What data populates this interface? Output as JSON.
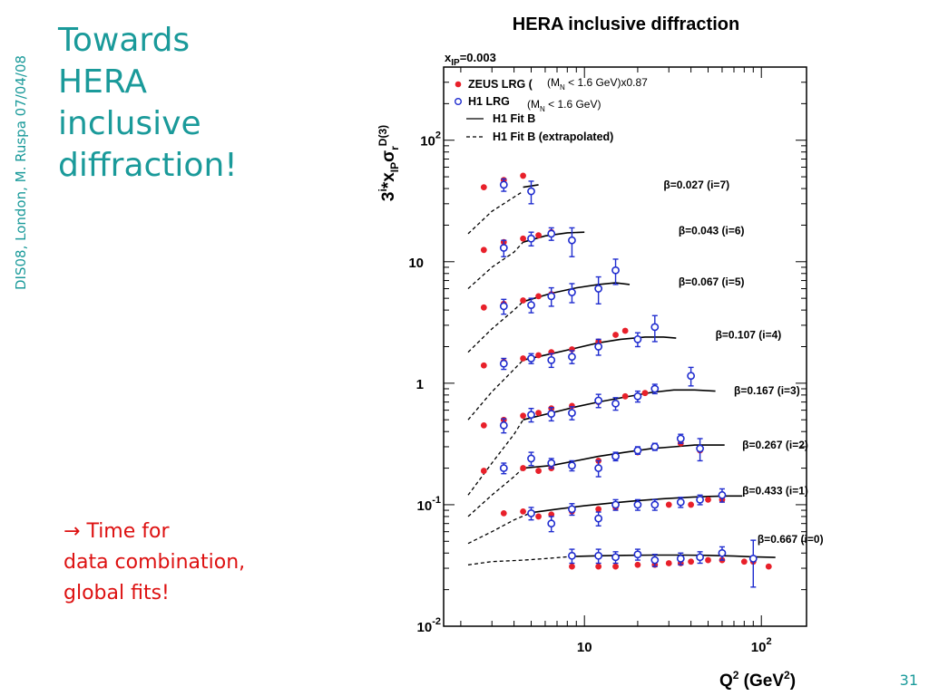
{
  "slide": {
    "side_label": "DIS08, London, M. Ruspa 07/04/08",
    "title_lines": [
      "Towards",
      "HERA",
      "inclusive",
      "diffraction!"
    ],
    "note_arrow": "→",
    "note_lines": [
      "Time for",
      "data combination,",
      "global fits!"
    ],
    "page_number": "31"
  },
  "colors": {
    "title": "#1a9a9a",
    "note": "#dd1111",
    "zeus": "#e8202a",
    "h1": "#1f2ccf",
    "fit": "#000000"
  },
  "chart_data": {
    "type": "scatter",
    "title": "HERA inclusive diffraction",
    "kinematics_label": "x",
    "kinematics_sub": "IP",
    "kinematics_value": "=0.003",
    "ylabel": {
      "prefix": "3",
      "sup_i": "i",
      "mid": "*x",
      "sub_ip": "IP",
      "sigma": "σ",
      "sub_r": "r",
      "sup_d3": "D(3)"
    },
    "xlabel": {
      "q": "Q",
      "sup": "2",
      "unit_open": " (GeV",
      "unit_sup": "2",
      "unit_close": ")"
    },
    "x_scale": "log",
    "y_scale": "log",
    "xlim": [
      1.6,
      180
    ],
    "ylim": [
      0.01,
      400
    ],
    "x_ticks": [
      {
        "value": 10,
        "base": "10",
        "exp": ""
      },
      {
        "value": 100,
        "base": "10",
        "exp": "2"
      }
    ],
    "y_ticks": [
      {
        "value": 0.01,
        "base": "10",
        "exp": "-2"
      },
      {
        "value": 0.1,
        "base": "10",
        "exp": "-1"
      },
      {
        "value": 1,
        "base": "1",
        "exp": ""
      },
      {
        "value": 10,
        "base": "10",
        "exp": ""
      },
      {
        "value": 100,
        "base": "10",
        "exp": "2"
      }
    ],
    "legend": {
      "position": "top-left",
      "entries": [
        {
          "marker": "zeus",
          "label": "ZEUS LRG (",
          "extra": "(M",
          "extra_sub": "N",
          "extra_rest": " < 1.6 GeV)x0.87"
        },
        {
          "marker": "h1",
          "label": "H1 LRG",
          "extra": "(M",
          "extra_sub": "N",
          "extra_rest": " < 1.6 GeV)"
        },
        {
          "marker": "fit",
          "label": "H1 Fit B"
        },
        {
          "marker": "fit-dashed",
          "label": "H1 Fit B (extrapolated)"
        }
      ]
    },
    "series": [
      {
        "label": "β=0.027 (i=7)",
        "label_q2": 28,
        "label_y": 43,
        "zeus": [
          [
            2.7,
            41
          ],
          [
            3.5,
            47
          ],
          [
            4.5,
            51
          ]
        ],
        "h1": [
          [
            3.5,
            43,
            5
          ],
          [
            5,
            38,
            8
          ]
        ],
        "fit": [
          [
            4.5,
            41
          ],
          [
            5.5,
            43
          ]
        ],
        "extrap": [
          [
            2.2,
            17
          ],
          [
            3,
            26
          ],
          [
            4,
            34
          ],
          [
            4.5,
            38
          ]
        ]
      },
      {
        "label": "β=0.043 (i=6)",
        "label_q2": 34,
        "label_y": 18,
        "zeus": [
          [
            2.7,
            12.5
          ],
          [
            3.5,
            14.5
          ],
          [
            4.5,
            15.5
          ],
          [
            5.5,
            16.5
          ],
          [
            6.5,
            17.5
          ]
        ],
        "h1": [
          [
            3.5,
            13,
            2
          ],
          [
            5,
            15.5,
            2
          ],
          [
            6.5,
            17,
            2
          ],
          [
            8.5,
            15,
            4
          ]
        ],
        "fit": [
          [
            4.5,
            14.5
          ],
          [
            6,
            16.3
          ],
          [
            8,
            17.3
          ],
          [
            10,
            17.5
          ]
        ],
        "extrap": [
          [
            2.2,
            6
          ],
          [
            3,
            9
          ],
          [
            4,
            12
          ],
          [
            4.5,
            14.5
          ]
        ]
      },
      {
        "label": "β=0.067 (i=5)",
        "label_q2": 34,
        "label_y": 6.8,
        "zeus": [
          [
            2.7,
            4.2
          ],
          [
            3.5,
            4.5
          ],
          [
            4.5,
            4.8
          ],
          [
            5.5,
            5.2
          ],
          [
            6.5,
            5.4
          ],
          [
            8.5,
            5.6
          ],
          [
            12,
            6.0
          ]
        ],
        "h1": [
          [
            3.5,
            4.3,
            0.6
          ],
          [
            5,
            4.4,
            0.6
          ],
          [
            6.5,
            5.2,
            0.9
          ],
          [
            8.5,
            5.6,
            1.0
          ],
          [
            12,
            6.0,
            1.5
          ],
          [
            15,
            8.5,
            2.0
          ]
        ],
        "fit": [
          [
            4.5,
            4.7
          ],
          [
            6.5,
            5.5
          ],
          [
            9,
            6.1
          ],
          [
            12,
            6.5
          ],
          [
            15,
            6.7
          ],
          [
            18,
            6.5
          ]
        ],
        "extrap": [
          [
            2.2,
            1.8
          ],
          [
            3,
            2.8
          ],
          [
            4,
            4
          ],
          [
            4.5,
            4.7
          ]
        ]
      },
      {
        "label": "β=0.107 (i=4)",
        "label_q2": 55,
        "label_y": 2.5,
        "zeus": [
          [
            2.7,
            1.4
          ],
          [
            3.5,
            1.5
          ],
          [
            4.5,
            1.6
          ],
          [
            5.5,
            1.7
          ],
          [
            6.5,
            1.8
          ],
          [
            8.5,
            1.9
          ],
          [
            12,
            2.2
          ],
          [
            15,
            2.5
          ],
          [
            17,
            2.7
          ]
        ],
        "h1": [
          [
            3.5,
            1.45,
            0.15
          ],
          [
            5,
            1.6,
            0.15
          ],
          [
            6.5,
            1.55,
            0.2
          ],
          [
            8.5,
            1.65,
            0.2
          ],
          [
            12,
            2.0,
            0.3
          ],
          [
            20,
            2.3,
            0.3
          ],
          [
            25,
            2.9,
            0.7
          ]
        ],
        "fit": [
          [
            4.5,
            1.55
          ],
          [
            6.5,
            1.75
          ],
          [
            9,
            1.95
          ],
          [
            12,
            2.15
          ],
          [
            16,
            2.3
          ],
          [
            22,
            2.4
          ],
          [
            28,
            2.4
          ],
          [
            33,
            2.35
          ]
        ],
        "extrap": [
          [
            2.2,
            0.5
          ],
          [
            3,
            0.85
          ],
          [
            4,
            1.3
          ],
          [
            4.5,
            1.55
          ]
        ]
      },
      {
        "label": "β=0.167 (i=3)",
        "label_q2": 70,
        "label_y": 0.87,
        "zeus": [
          [
            2.7,
            0.45
          ],
          [
            3.5,
            0.5
          ],
          [
            4.5,
            0.54
          ],
          [
            5.5,
            0.57
          ],
          [
            6.5,
            0.62
          ],
          [
            8.5,
            0.65
          ],
          [
            12,
            0.7
          ],
          [
            17,
            0.78
          ],
          [
            22,
            0.83
          ]
        ],
        "h1": [
          [
            3.5,
            0.45,
            0.06
          ],
          [
            5,
            0.55,
            0.07
          ],
          [
            6.5,
            0.56,
            0.07
          ],
          [
            8.5,
            0.57,
            0.07
          ],
          [
            12,
            0.72,
            0.09
          ],
          [
            15,
            0.68,
            0.08
          ],
          [
            20,
            0.78,
            0.08
          ],
          [
            25,
            0.9,
            0.08
          ],
          [
            40,
            1.15,
            0.2
          ]
        ],
        "fit": [
          [
            4.5,
            0.5
          ],
          [
            6.5,
            0.57
          ],
          [
            9,
            0.64
          ],
          [
            12,
            0.7
          ],
          [
            17,
            0.77
          ],
          [
            24,
            0.84
          ],
          [
            32,
            0.88
          ],
          [
            42,
            0.88
          ],
          [
            55,
            0.86
          ]
        ],
        "extrap": [
          [
            2.2,
            0.12
          ],
          [
            3,
            0.22
          ],
          [
            4,
            0.38
          ],
          [
            4.5,
            0.5
          ]
        ]
      },
      {
        "label": "β=0.267 (i=2)",
        "label_q2": 78,
        "label_y": 0.31,
        "zeus": [
          [
            2.7,
            0.19
          ],
          [
            3.5,
            0.2
          ],
          [
            4.5,
            0.2
          ],
          [
            5.5,
            0.19
          ],
          [
            6.5,
            0.2
          ],
          [
            8.5,
            0.21
          ],
          [
            12,
            0.23
          ],
          [
            15,
            0.25
          ],
          [
            20,
            0.27
          ],
          [
            25,
            0.3
          ],
          [
            35,
            0.32
          ],
          [
            45,
            0.28
          ]
        ],
        "h1": [
          [
            3.5,
            0.2,
            0.02
          ],
          [
            5,
            0.24,
            0.03
          ],
          [
            6.5,
            0.22,
            0.02
          ],
          [
            8.5,
            0.21,
            0.02
          ],
          [
            12,
            0.2,
            0.03
          ],
          [
            15,
            0.25,
            0.02
          ],
          [
            20,
            0.28,
            0.02
          ],
          [
            25,
            0.3,
            0.02
          ],
          [
            35,
            0.35,
            0.03
          ],
          [
            45,
            0.29,
            0.06
          ]
        ],
        "fit": [
          [
            4.5,
            0.2
          ],
          [
            6.5,
            0.21
          ],
          [
            9,
            0.23
          ],
          [
            12,
            0.25
          ],
          [
            17,
            0.27
          ],
          [
            24,
            0.29
          ],
          [
            32,
            0.3
          ],
          [
            42,
            0.31
          ],
          [
            55,
            0.31
          ],
          [
            62,
            0.31
          ]
        ],
        "extrap": [
          [
            2.2,
            0.08
          ],
          [
            3,
            0.12
          ],
          [
            4,
            0.17
          ],
          [
            4.5,
            0.2
          ]
        ]
      },
      {
        "label": "β=0.433 (i=1)",
        "label_q2": 78,
        "label_y": 0.13,
        "zeus": [
          [
            3.5,
            0.085
          ],
          [
            4.5,
            0.088
          ],
          [
            5.5,
            0.08
          ],
          [
            6.5,
            0.083
          ],
          [
            8.5,
            0.088
          ],
          [
            12,
            0.092
          ],
          [
            15,
            0.095
          ],
          [
            20,
            0.1
          ],
          [
            25,
            0.1
          ],
          [
            30,
            0.1
          ],
          [
            40,
            0.1
          ],
          [
            50,
            0.11
          ],
          [
            60,
            0.11
          ]
        ],
        "h1": [
          [
            5,
            0.085,
            0.01
          ],
          [
            6.5,
            0.07,
            0.01
          ],
          [
            8.5,
            0.092,
            0.01
          ],
          [
            12,
            0.077,
            0.01
          ],
          [
            15,
            0.1,
            0.01
          ],
          [
            20,
            0.1,
            0.01
          ],
          [
            25,
            0.1,
            0.01
          ],
          [
            35,
            0.105,
            0.01
          ],
          [
            45,
            0.11,
            0.01
          ],
          [
            60,
            0.12,
            0.015
          ]
        ],
        "fit": [
          [
            5,
            0.086
          ],
          [
            7,
            0.092
          ],
          [
            10,
            0.098
          ],
          [
            14,
            0.103
          ],
          [
            20,
            0.108
          ],
          [
            28,
            0.112
          ],
          [
            38,
            0.115
          ],
          [
            50,
            0.117
          ],
          [
            65,
            0.118
          ],
          [
            78,
            0.118
          ]
        ],
        "extrap": [
          [
            2.2,
            0.048
          ],
          [
            3,
            0.06
          ],
          [
            4,
            0.075
          ],
          [
            5,
            0.086
          ]
        ]
      },
      {
        "label": "β=0.667 (i=0)",
        "label_q2": 95,
        "label_y": 0.052,
        "zeus": [
          [
            8.5,
            0.031
          ],
          [
            12,
            0.031
          ],
          [
            15,
            0.031
          ],
          [
            20,
            0.032
          ],
          [
            25,
            0.032
          ],
          [
            30,
            0.033
          ],
          [
            35,
            0.033
          ],
          [
            40,
            0.034
          ],
          [
            50,
            0.035
          ],
          [
            60,
            0.035
          ],
          [
            80,
            0.034
          ],
          [
            90,
            0.034
          ],
          [
            110,
            0.031
          ]
        ],
        "h1": [
          [
            8.5,
            0.038,
            0.005
          ],
          [
            12,
            0.038,
            0.005
          ],
          [
            15,
            0.037,
            0.004
          ],
          [
            20,
            0.039,
            0.004
          ],
          [
            25,
            0.035,
            0.004
          ],
          [
            35,
            0.036,
            0.004
          ],
          [
            45,
            0.037,
            0.004
          ],
          [
            60,
            0.04,
            0.005
          ],
          [
            90,
            0.036,
            0.015
          ]
        ],
        "fit": [
          [
            8.5,
            0.0375
          ],
          [
            12,
            0.038
          ],
          [
            17,
            0.0383
          ],
          [
            25,
            0.0385
          ],
          [
            35,
            0.0385
          ],
          [
            50,
            0.0383
          ],
          [
            70,
            0.0378
          ],
          [
            90,
            0.0373
          ],
          [
            120,
            0.0368
          ]
        ],
        "extrap": [
          [
            2.2,
            0.032
          ],
          [
            3,
            0.034
          ],
          [
            4.5,
            0.035
          ],
          [
            6,
            0.036
          ],
          [
            8.5,
            0.0375
          ]
        ]
      }
    ]
  }
}
